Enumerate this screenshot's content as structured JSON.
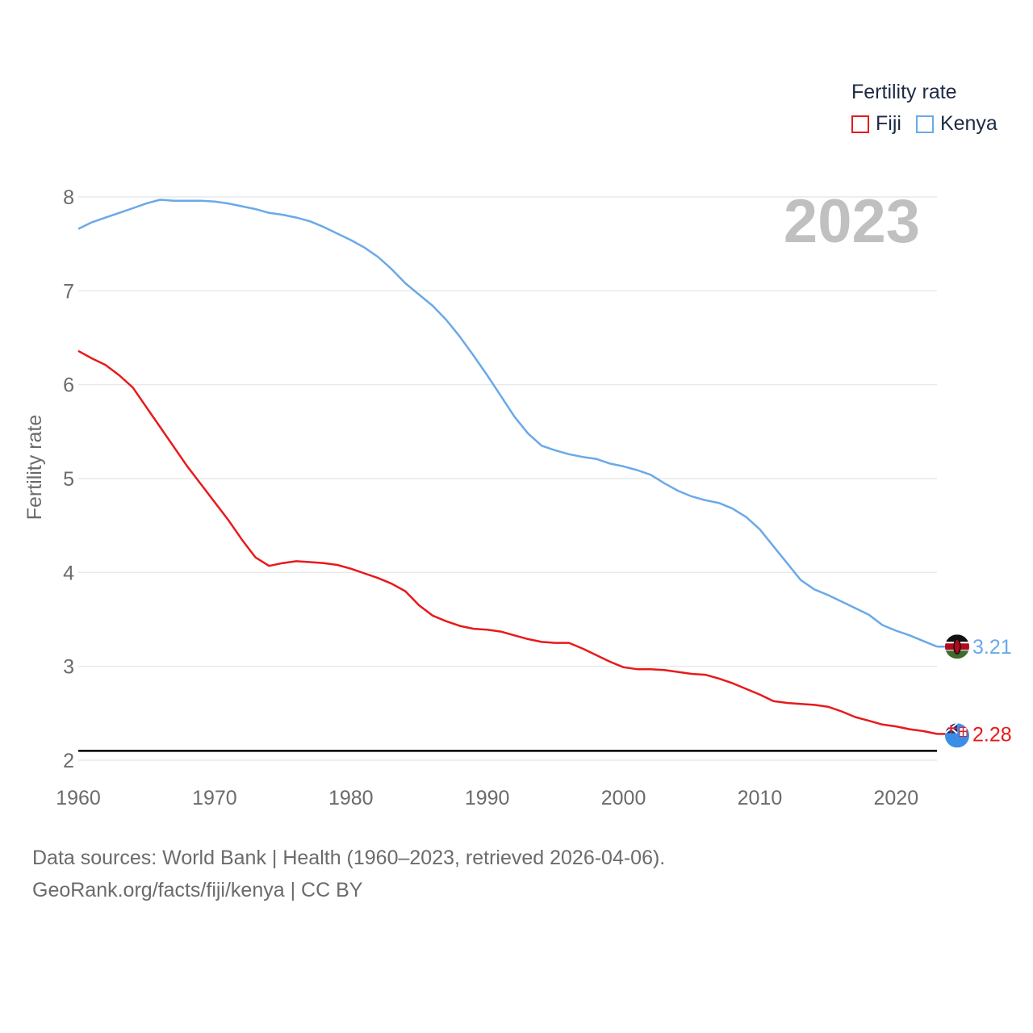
{
  "chart_data": {
    "type": "line",
    "title": "Fertility rate",
    "year_label": "2023",
    "ylabel": "Fertility rate",
    "xlabel": "",
    "xlim": [
      1960,
      2023
    ],
    "ylim": [
      2,
      8
    ],
    "x_ticks": [
      1960,
      1970,
      1980,
      1990,
      2000,
      2010,
      2020
    ],
    "y_ticks": [
      2,
      3,
      4,
      5,
      6,
      7,
      8
    ],
    "reference_line": {
      "y": 2.1,
      "color": "#000000"
    },
    "series": [
      {
        "name": "Fiji",
        "color": "#e8191b",
        "end_label": "2.28",
        "x": [
          1960,
          1961,
          1962,
          1963,
          1964,
          1965,
          1966,
          1967,
          1968,
          1969,
          1970,
          1971,
          1972,
          1973,
          1974,
          1975,
          1976,
          1977,
          1978,
          1979,
          1980,
          1981,
          1982,
          1983,
          1984,
          1985,
          1986,
          1987,
          1988,
          1989,
          1990,
          1991,
          1992,
          1993,
          1994,
          1995,
          1996,
          1997,
          1998,
          1999,
          2000,
          2001,
          2002,
          2003,
          2004,
          2005,
          2006,
          2007,
          2008,
          2009,
          2010,
          2011,
          2012,
          2013,
          2014,
          2015,
          2016,
          2017,
          2018,
          2019,
          2020,
          2021,
          2022,
          2023
        ],
        "values": [
          6.36,
          6.28,
          6.21,
          6.1,
          5.97,
          5.76,
          5.55,
          5.34,
          5.13,
          4.94,
          4.75,
          4.56,
          4.35,
          4.16,
          4.07,
          4.1,
          4.12,
          4.11,
          4.1,
          4.08,
          4.04,
          3.99,
          3.94,
          3.88,
          3.8,
          3.65,
          3.54,
          3.48,
          3.43,
          3.4,
          3.39,
          3.37,
          3.33,
          3.29,
          3.26,
          3.25,
          3.25,
          3.19,
          3.12,
          3.05,
          2.99,
          2.97,
          2.97,
          2.96,
          2.94,
          2.92,
          2.91,
          2.87,
          2.82,
          2.76,
          2.7,
          2.63,
          2.61,
          2.6,
          2.59,
          2.57,
          2.52,
          2.46,
          2.42,
          2.38,
          2.36,
          2.33,
          2.31,
          2.28
        ]
      },
      {
        "name": "Kenya",
        "color": "#6aa9e8",
        "end_label": "3.21",
        "x": [
          1960,
          1961,
          1962,
          1963,
          1964,
          1965,
          1966,
          1967,
          1968,
          1969,
          1970,
          1971,
          1972,
          1973,
          1974,
          1975,
          1976,
          1977,
          1978,
          1979,
          1980,
          1981,
          1982,
          1983,
          1984,
          1985,
          1986,
          1987,
          1988,
          1989,
          1990,
          1991,
          1992,
          1993,
          1994,
          1995,
          1996,
          1997,
          1998,
          1999,
          2000,
          2001,
          2002,
          2003,
          2004,
          2005,
          2006,
          2007,
          2008,
          2009,
          2010,
          2011,
          2012,
          2013,
          2014,
          2015,
          2016,
          2017,
          2018,
          2019,
          2020,
          2021,
          2022,
          2023
        ],
        "values": [
          7.66,
          7.73,
          7.78,
          7.83,
          7.88,
          7.93,
          7.97,
          7.96,
          7.96,
          7.96,
          7.95,
          7.93,
          7.9,
          7.87,
          7.83,
          7.81,
          7.78,
          7.74,
          7.68,
          7.61,
          7.54,
          7.46,
          7.36,
          7.23,
          7.08,
          6.96,
          6.84,
          6.69,
          6.51,
          6.31,
          6.1,
          5.88,
          5.66,
          5.48,
          5.35,
          5.3,
          5.26,
          5.23,
          5.21,
          5.16,
          5.13,
          5.09,
          5.04,
          4.95,
          4.87,
          4.81,
          4.77,
          4.74,
          4.68,
          4.59,
          4.46,
          4.28,
          4.1,
          3.92,
          3.82,
          3.76,
          3.69,
          3.62,
          3.55,
          3.44,
          3.38,
          3.33,
          3.27,
          3.21
        ]
      }
    ]
  },
  "legend": {
    "title": "Fertility rate",
    "items": [
      {
        "label": "Fiji",
        "color": "#e8191b"
      },
      {
        "label": "Kenya",
        "color": "#6aa9e8"
      }
    ]
  },
  "footer": {
    "line1": "Data sources: World Bank | Health (1960–2023, retrieved 2026-04-06).",
    "line2": "GeoRank.org/facts/fiji/kenya | CC BY"
  },
  "flags": {
    "fiji": "fiji-flag-icon",
    "kenya": "kenya-flag-icon"
  }
}
